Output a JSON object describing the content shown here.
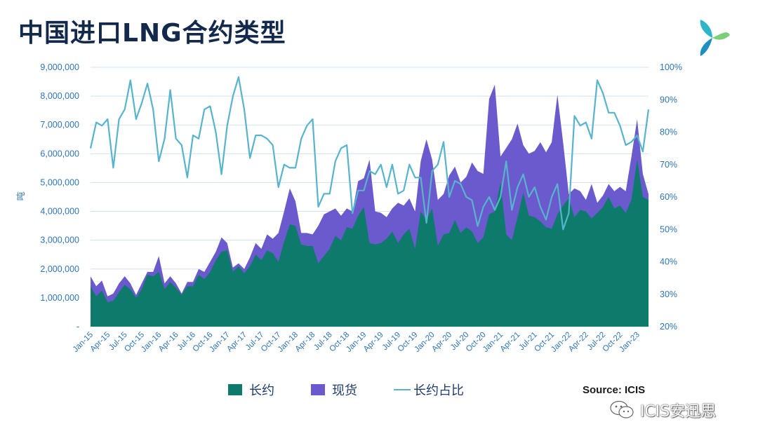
{
  "header": {
    "title": "中国进口LNG合约类型"
  },
  "legend": {
    "long_term": "长约",
    "spot": "现货",
    "share": "长约占比"
  },
  "source": "Source: ICIS",
  "watermark": {
    "text": "ICIS安迅思"
  },
  "colors": {
    "long_term": "#0d7a6c",
    "spot": "#6a5acd",
    "share": "#57b4cc",
    "axis_text": "#2e75b6",
    "grid": "#cfe3ef",
    "title": "#13294b"
  },
  "chart_data": {
    "type": "area",
    "title": "中国进口LNG合约类型",
    "ylabel": "吨",
    "ylim": [
      0,
      9000000
    ],
    "y_ticks": [
      0,
      1000000,
      2000000,
      3000000,
      4000000,
      5000000,
      6000000,
      7000000,
      8000000,
      9000000
    ],
    "y_tick_labels": [
      "-",
      "1,000,000",
      "2,000,000",
      "3,000,000",
      "4,000,000",
      "5,000,000",
      "6,000,000",
      "7,000,000",
      "8,000,000",
      "9,000,000"
    ],
    "y2lim": [
      20,
      100
    ],
    "y2_ticks": [
      20,
      30,
      40,
      50,
      60,
      70,
      80,
      90,
      100
    ],
    "y2_tick_labels": [
      "20%",
      "30%",
      "40%",
      "50%",
      "60%",
      "70%",
      "80%",
      "90%",
      "100%"
    ],
    "x_start": "Jan-15",
    "x_step_months": 1,
    "x_tick_labels": [
      "Jan-15",
      "Apr-15",
      "Jul-15",
      "Oct-15",
      "Jan-16",
      "Apr-16",
      "Jul-16",
      "Oct-16",
      "Jan-17",
      "Apr-17",
      "Jul-17",
      "Oct-17",
      "Jan-18",
      "Apr-18",
      "Jul-18",
      "Oct-18",
      "Jan-19",
      "Apr-19",
      "Jul-19",
      "Oct-19",
      "Jan-20",
      "Apr-20",
      "Jul-20",
      "Oct-20",
      "Jan-21",
      "Apr-21",
      "Jul-21",
      "Oct-21",
      "Jan-22",
      "Apr-22",
      "Jul-22",
      "Oct-22",
      "Jan-23"
    ],
    "series": [
      {
        "name": "长约",
        "kind": "area",
        "values": [
          1400000,
          1050000,
          1250000,
          850000,
          900000,
          1200000,
          1450000,
          1300000,
          1000000,
          1300000,
          1800000,
          1750000,
          1900000,
          1300000,
          1550000,
          1350000,
          1100000,
          1400000,
          1400000,
          1800000,
          1650000,
          1900000,
          2300000,
          2600000,
          2650000,
          1900000,
          2100000,
          1850000,
          2100000,
          2500000,
          2300000,
          2650000,
          2550000,
          2250000,
          2950000,
          3550000,
          3500000,
          2850000,
          2800000,
          2800000,
          2200000,
          2450000,
          2700000,
          3150000,
          3000000,
          3450000,
          3400000,
          3850000,
          4150000,
          2900000,
          2850000,
          2900000,
          3050000,
          3300000,
          2900000,
          3200000,
          3400000,
          2700000,
          4000000,
          3700000,
          4100000,
          2800000,
          3200000,
          3250000,
          3700000,
          3250000,
          3450000,
          3300000,
          2900000,
          3100000,
          3900000,
          4000000,
          5000000,
          3200000,
          3000000,
          3800000,
          4650000,
          3850000,
          3800000,
          3650000,
          3450000,
          3400000,
          3900000,
          4200000,
          4450000,
          3800000,
          4050000,
          4000000,
          3750000,
          3950000,
          4150000,
          4500000,
          4100000,
          4200000,
          3950000,
          4400000,
          5800000,
          4500000,
          4400000
        ],
        "color": "#0d7a6c"
      },
      {
        "name": "现货",
        "kind": "area_stacked_total",
        "values": [
          1750000,
          1400000,
          1600000,
          1050000,
          1150000,
          1500000,
          1750000,
          1500000,
          1100000,
          1500000,
          1900000,
          1900000,
          2450000,
          1500000,
          1750000,
          1500000,
          1150000,
          1550000,
          1550000,
          2000000,
          1900000,
          2250000,
          2600000,
          3100000,
          2900000,
          2050000,
          2200000,
          2000000,
          2400000,
          2900000,
          2700000,
          3200000,
          3050000,
          3250000,
          4000000,
          4800000,
          4350000,
          3250000,
          3250000,
          3200000,
          3500000,
          3900000,
          4000000,
          4100000,
          3850000,
          4100000,
          4000000,
          5050000,
          5150000,
          5800000,
          4000000,
          3950000,
          3800000,
          4100000,
          4300000,
          4200000,
          4450000,
          4000000,
          5750000,
          6500000,
          5800000,
          4400000,
          4600000,
          5250000,
          5550000,
          5000000,
          5200000,
          5700000,
          5400000,
          5300000,
          7900000,
          8400000,
          5900000,
          6200000,
          6500000,
          7050000,
          6300000,
          6000000,
          6100000,
          6400000,
          6050000,
          6400000,
          8050000,
          6400000,
          4600000,
          4800000,
          4700000,
          4400000,
          4950000,
          4300000,
          4550000,
          4950000,
          4700000,
          4850000,
          4700000,
          5900000,
          7200000,
          5300000,
          4600000
        ],
        "color": "#6a5acd"
      },
      {
        "name": "长约占比",
        "kind": "line",
        "axis": "right",
        "values": [
          75,
          83,
          82,
          84,
          69,
          84,
          87,
          96,
          84,
          89,
          95,
          87,
          71,
          78,
          93,
          78,
          76,
          66,
          79,
          78,
          87,
          88,
          80,
          67,
          82,
          91,
          97,
          87,
          72,
          79,
          79,
          78,
          76,
          63,
          70,
          69,
          69,
          78,
          82,
          84,
          57,
          61,
          61,
          71,
          75,
          76,
          55,
          62,
          62,
          68,
          67,
          70,
          63,
          70,
          61,
          62,
          70,
          66,
          66,
          52,
          68,
          70,
          77,
          60,
          65,
          64,
          60,
          59,
          51,
          57,
          60,
          56,
          60,
          71,
          56,
          63,
          67,
          60,
          63,
          57,
          53,
          60,
          64,
          50,
          55,
          85,
          82,
          83,
          78,
          96,
          92,
          86,
          86,
          82,
          76,
          77,
          79,
          74,
          87
        ],
        "color": "#57b4cc"
      }
    ]
  }
}
